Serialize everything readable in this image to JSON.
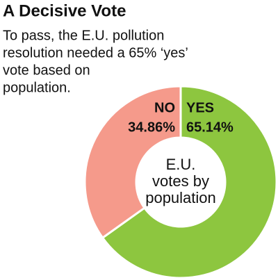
{
  "chart_data": {
    "type": "pie",
    "donut": true,
    "title": "A Decisive Vote",
    "subtitle": [
      "To pass, the E.U. pollution",
      "resolution needed a 65% ‘yes’",
      "vote based on",
      "population."
    ],
    "center_label": [
      "E.U.",
      "votes by",
      "population"
    ],
    "categories": [
      "YES",
      "NO"
    ],
    "values": [
      65.14,
      34.86
    ],
    "value_labels": [
      "65.14%",
      "34.86%"
    ],
    "colors": [
      "#8dc63f",
      "#f59a8b"
    ]
  }
}
